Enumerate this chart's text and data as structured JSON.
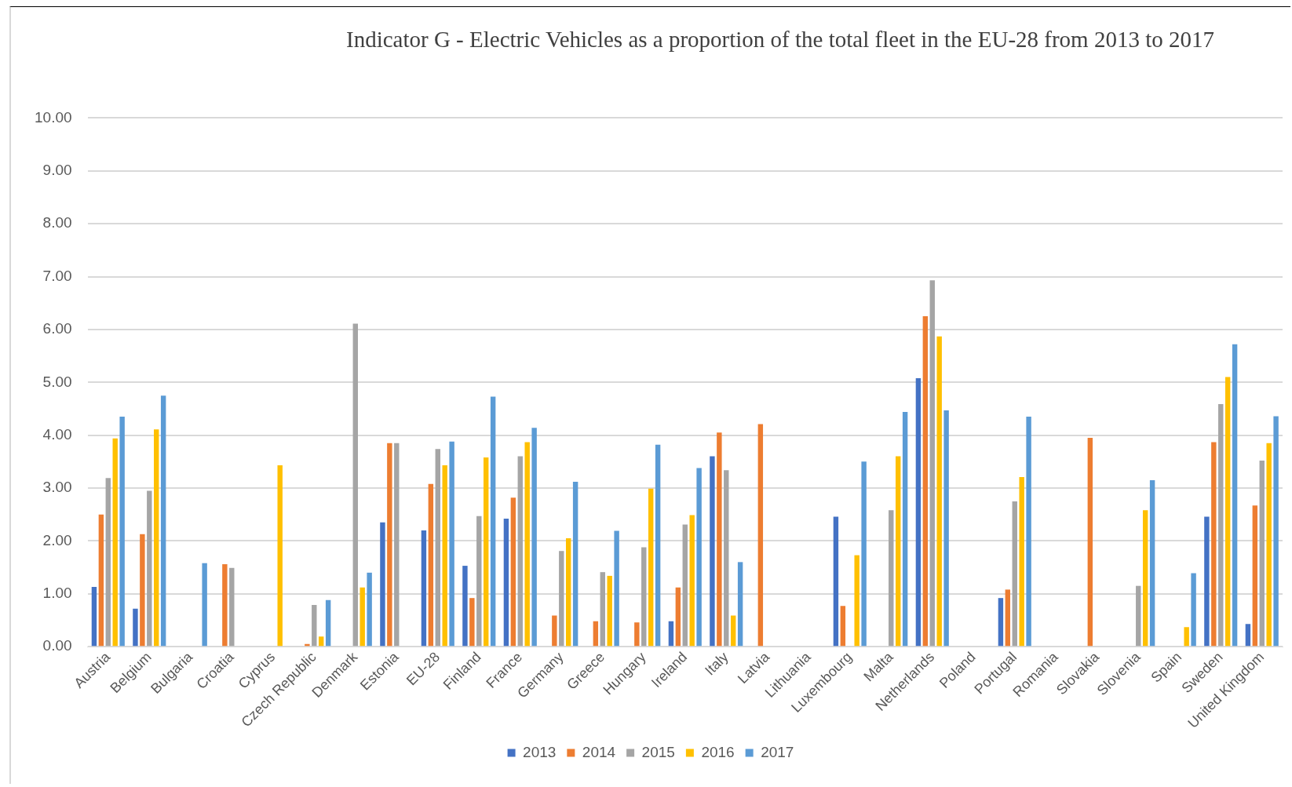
{
  "chart_data": {
    "type": "bar",
    "title": "Indicator  G - Electric Vehicles as a proportion  of the total fleet in the EU-28 from 2013 to 2017",
    "categories": [
      "Austria",
      "Belgium",
      "Bulgaria",
      "Croatia",
      "Cyprus",
      "Czech Republic",
      "Denmark",
      "Estonia",
      "EU-28",
      "Finland",
      "France",
      "Germany",
      "Greece",
      "Hungary",
      "Ireland",
      "Italy",
      "Latvia",
      "Lithuania",
      "Luxembourg",
      "Malta",
      "Netherlands",
      "Poland",
      "Portugal",
      "Romania",
      "Slovakia",
      "Slovenia",
      "Spain",
      "Sweden",
      "United Kingdom"
    ],
    "series": [
      {
        "name": "2013",
        "color": "#4472c4",
        "values": [
          1.13,
          0.72,
          null,
          null,
          null,
          null,
          null,
          2.35,
          2.2,
          1.53,
          2.42,
          null,
          null,
          null,
          0.48,
          3.6,
          null,
          null,
          2.46,
          null,
          5.08,
          null,
          0.92,
          null,
          null,
          null,
          null,
          2.46,
          0.43
        ]
      },
      {
        "name": "2014",
        "color": "#ed7d31",
        "values": [
          2.5,
          2.13,
          null,
          1.56,
          null,
          0.05,
          null,
          3.85,
          3.08,
          0.92,
          2.82,
          0.59,
          0.48,
          0.46,
          1.12,
          4.05,
          4.21,
          null,
          0.77,
          null,
          6.25,
          null,
          1.08,
          null,
          3.95,
          null,
          null,
          3.87,
          2.67
        ]
      },
      {
        "name": "2015",
        "color": "#a5a5a5",
        "values": [
          3.19,
          2.95,
          null,
          1.49,
          null,
          0.79,
          6.11,
          3.85,
          3.74,
          2.47,
          3.6,
          1.81,
          1.41,
          1.88,
          2.31,
          3.34,
          null,
          null,
          null,
          2.58,
          6.93,
          null,
          2.75,
          null,
          null,
          1.15,
          null,
          4.59,
          3.52
        ]
      },
      {
        "name": "2016",
        "color": "#ffc000",
        "values": [
          3.94,
          4.11,
          null,
          null,
          3.43,
          0.19,
          1.12,
          null,
          3.43,
          3.58,
          3.87,
          2.05,
          1.34,
          2.99,
          2.49,
          0.59,
          null,
          null,
          1.73,
          3.6,
          5.87,
          null,
          3.21,
          null,
          null,
          2.58,
          0.37,
          5.1,
          3.85
        ]
      },
      {
        "name": "2017",
        "color": "#5b9bd5",
        "values": [
          4.35,
          4.75,
          1.58,
          null,
          null,
          0.88,
          1.4,
          null,
          3.88,
          4.73,
          4.14,
          3.12,
          2.19,
          3.82,
          3.38,
          1.6,
          null,
          null,
          3.5,
          4.44,
          4.47,
          null,
          4.35,
          null,
          null,
          3.15,
          1.39,
          5.72,
          4.36
        ]
      }
    ],
    "ylim": [
      0,
      10
    ],
    "yticks": [
      {
        "value": 0,
        "label": "0.00"
      },
      {
        "value": 1,
        "label": "1.00"
      },
      {
        "value": 2,
        "label": "2.00"
      },
      {
        "value": 3,
        "label": "3.00"
      },
      {
        "value": 4,
        "label": "4.00"
      },
      {
        "value": 5,
        "label": "5.00"
      },
      {
        "value": 6,
        "label": "6.00"
      },
      {
        "value": 7,
        "label": "7.00"
      },
      {
        "value": 8,
        "label": "8.00"
      },
      {
        "value": 9,
        "label": "9.00"
      },
      {
        "value": 10,
        "label": "10.00"
      }
    ],
    "grid": "y",
    "legend": "bottom"
  }
}
